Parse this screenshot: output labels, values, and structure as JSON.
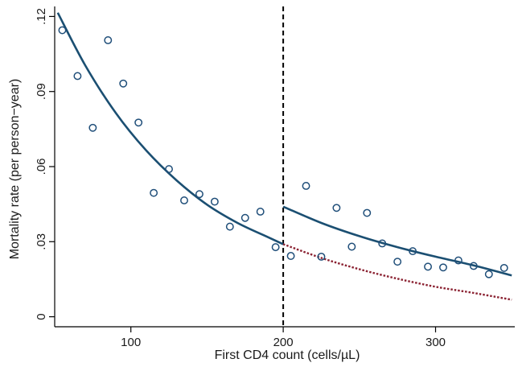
{
  "chart_data": {
    "type": "scatter",
    "xlabel": "First CD4 count (cells/µL)",
    "ylabel": "Mortality rate (per person−year)",
    "xlim": [
      50,
      352
    ],
    "ylim": [
      -0.004,
      0.124
    ],
    "xticks": [
      100,
      200,
      300
    ],
    "xtick_labels": [
      "100",
      "200",
      "300"
    ],
    "yticks": [
      0,
      0.03,
      0.06,
      0.09,
      0.12
    ],
    "ytick_labels": [
      "0",
      ".03",
      ".06",
      ".09",
      ".12"
    ],
    "threshold_x": 200,
    "grid": false,
    "series": [
      {
        "marker": "hollow-circle",
        "color": "#1f4e79",
        "x": [
          55,
          65,
          75,
          85,
          95,
          105,
          115,
          125,
          135,
          145,
          155,
          165,
          175,
          185,
          195,
          205,
          215,
          225,
          235,
          245,
          255,
          265,
          275,
          285,
          295,
          305,
          315,
          325,
          335,
          345
        ],
        "y": [
          0.1145,
          0.0962,
          0.0755,
          0.1105,
          0.0932,
          0.0776,
          0.0495,
          0.059,
          0.0465,
          0.049,
          0.046,
          0.036,
          0.0395,
          0.042,
          0.0278,
          0.0243,
          0.0523,
          0.024,
          0.0435,
          0.028,
          0.0415,
          0.0293,
          0.022,
          0.0262,
          0.02,
          0.0197,
          0.0225,
          0.0203,
          0.017,
          0.0195
        ]
      },
      {
        "style": "solid",
        "color": "#1b4f72",
        "x": [
          52,
          70,
          90,
          110,
          130,
          150,
          170,
          190,
          200
        ],
        "y": [
          0.1215,
          0.1005,
          0.0815,
          0.0665,
          0.0545,
          0.0448,
          0.0375,
          0.0318,
          0.029
        ]
      },
      {
        "style": "solid",
        "color": "#1b4f72",
        "x": [
          200,
          225,
          250,
          275,
          300,
          325,
          350
        ],
        "y": [
          0.044,
          0.0375,
          0.0322,
          0.0278,
          0.024,
          0.0205,
          0.0165
        ]
      },
      {
        "style": "dotted",
        "color": "#8b2232",
        "x": [
          200,
          225,
          250,
          275,
          300,
          325,
          350
        ],
        "y": [
          0.029,
          0.0235,
          0.019,
          0.0152,
          0.012,
          0.0095,
          0.0068
        ]
      }
    ]
  }
}
